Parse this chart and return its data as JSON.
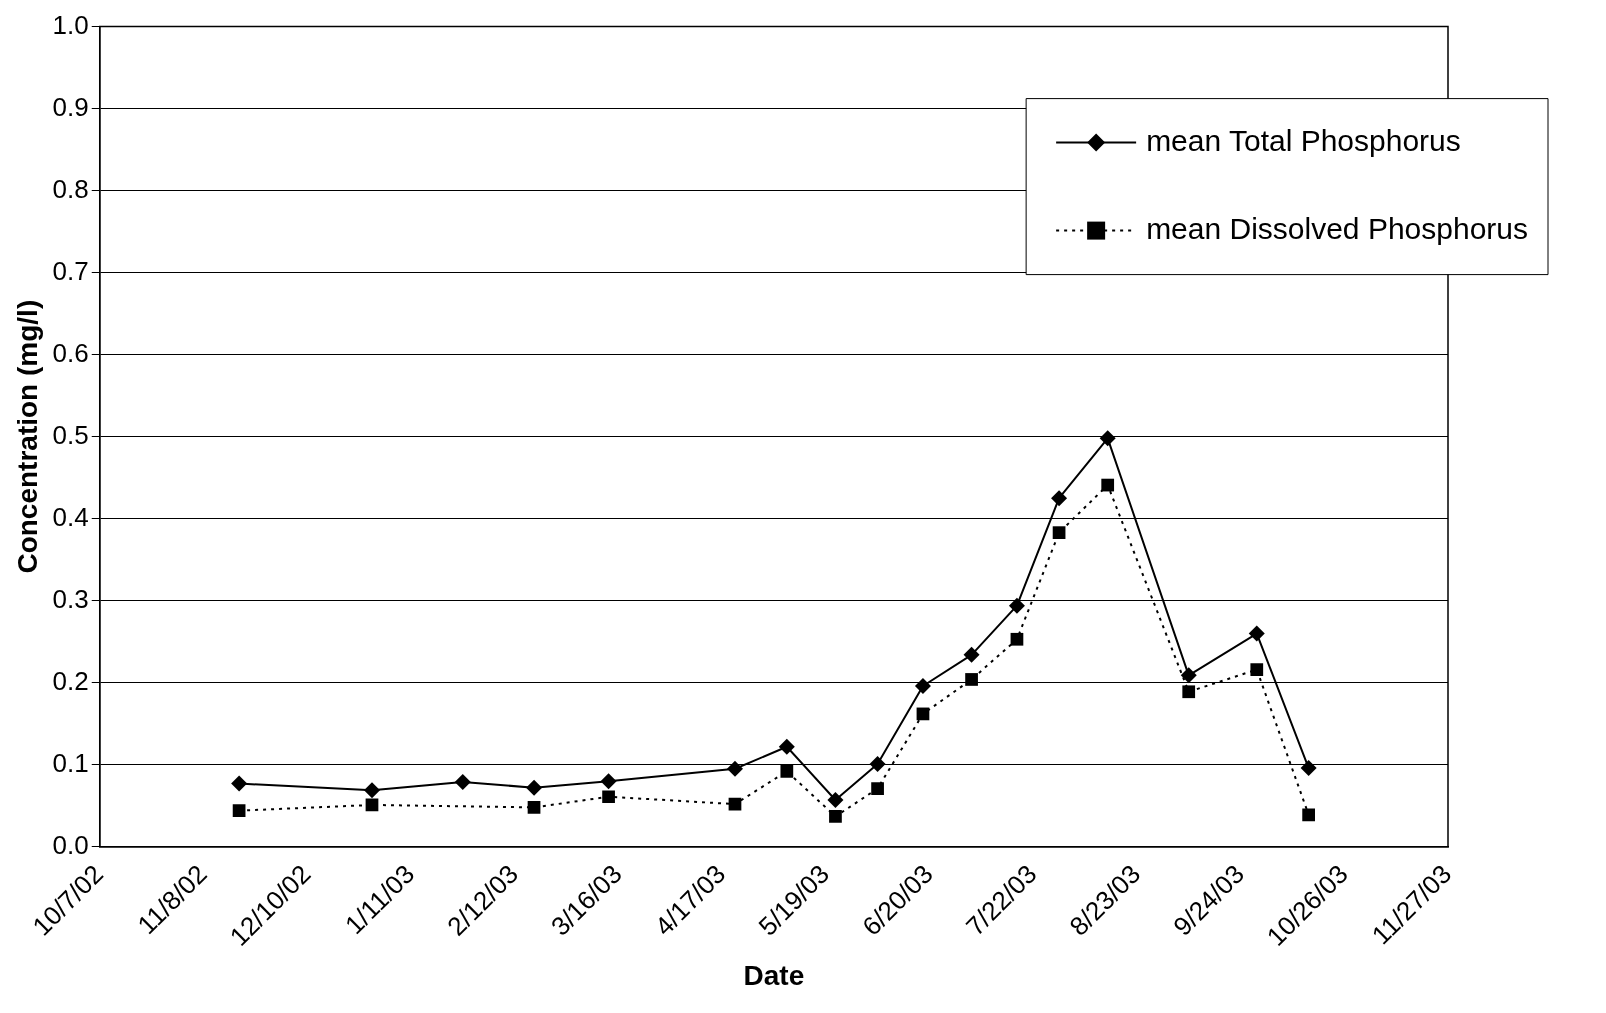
{
  "chart_data": {
    "type": "line",
    "xlabel": "Date",
    "ylabel": "Concentration (mg/l)",
    "x": [
      "2002-11-19",
      "2002-12-30",
      "2003-01-27",
      "2003-02-18",
      "2003-03-13",
      "2003-04-21",
      "2003-05-07",
      "2003-05-22",
      "2003-06-04",
      "2003-06-18",
      "2003-07-03",
      "2003-07-17",
      "2003-07-30",
      "2003-08-14",
      "2003-09-08",
      "2003-09-29",
      "2003-10-15"
    ],
    "series": [
      {
        "name": "mean Total Phosphorus",
        "color": "#000000",
        "marker": "diamond",
        "line_style": "solid",
        "values": [
          0.077,
          0.069,
          0.079,
          0.072,
          0.08,
          0.095,
          0.122,
          0.057,
          0.101,
          0.196,
          0.234,
          0.294,
          0.425,
          0.498,
          0.209,
          0.26,
          0.096
        ]
      },
      {
        "name": "mean Dissolved Phosphorus",
        "color": "#000000",
        "marker": "square",
        "line_style": "dotted",
        "values": [
          0.044,
          0.051,
          null,
          0.048,
          0.061,
          0.052,
          0.092,
          0.037,
          0.071,
          0.162,
          0.204,
          0.253,
          0.383,
          0.441,
          0.189,
          0.216,
          0.039
        ]
      }
    ],
    "xlim": [
      "2002-10-07",
      "2003-11-27"
    ],
    "xticks": [
      {
        "value": "2002-10-07",
        "label": "10/7/02"
      },
      {
        "value": "2002-11-08",
        "label": "11/8/02"
      },
      {
        "value": "2002-12-10",
        "label": "12/10/02"
      },
      {
        "value": "2003-01-11",
        "label": "1/11/03"
      },
      {
        "value": "2003-02-12",
        "label": "2/12/03"
      },
      {
        "value": "2003-03-16",
        "label": "3/16/03"
      },
      {
        "value": "2003-04-17",
        "label": "4/17/03"
      },
      {
        "value": "2003-05-19",
        "label": "5/19/03"
      },
      {
        "value": "2003-06-20",
        "label": "6/20/03"
      },
      {
        "value": "2003-07-22",
        "label": "7/22/03"
      },
      {
        "value": "2003-08-23",
        "label": "8/23/03"
      },
      {
        "value": "2003-09-24",
        "label": "9/24/03"
      },
      {
        "value": "2003-10-26",
        "label": "10/26/03"
      },
      {
        "value": "2003-11-27",
        "label": "11/27/03"
      }
    ],
    "ylim": [
      0,
      1
    ],
    "yticks": [
      {
        "value": 0,
        "label": "0.0"
      },
      0.1,
      0.2,
      0.3,
      0.4,
      0.5,
      0.6,
      0.7,
      0.8,
      0.9,
      {
        "value": 1,
        "label": "1.0"
      }
    ],
    "grid": "y",
    "legend": "top right"
  }
}
